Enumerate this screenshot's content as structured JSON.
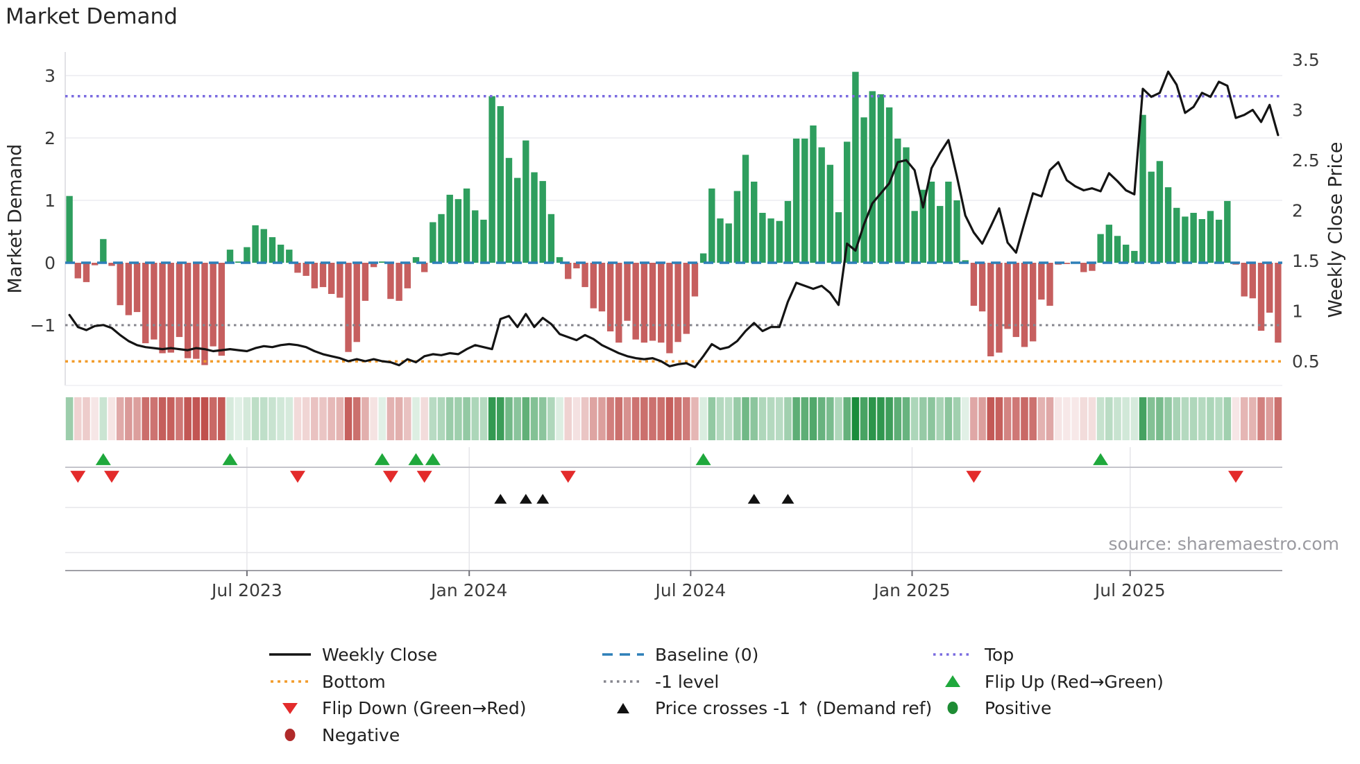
{
  "title": "Market Demand",
  "source": "source: sharemaestro.com",
  "axes": {
    "left_label": "Market Demand",
    "right_label": "Weekly Close Price",
    "left_ticks": [
      {
        "label": "3",
        "value": 3
      },
      {
        "label": "2",
        "value": 2
      },
      {
        "label": "1",
        "value": 1
      },
      {
        "label": "0",
        "value": 0
      },
      {
        "label": "−1",
        "value": -1
      }
    ],
    "right_ticks": [
      {
        "label": "3.5",
        "value": 3.5
      },
      {
        "label": "3",
        "value": 3
      },
      {
        "label": "2.5",
        "value": 2.5
      },
      {
        "label": "2",
        "value": 2
      },
      {
        "label": "1.5",
        "value": 1.5
      },
      {
        "label": "1",
        "value": 1
      },
      {
        "label": "0.5",
        "value": 0.5
      }
    ],
    "x_ticks": [
      {
        "label": "Jul 2023",
        "week": 21.0
      },
      {
        "label": "Jan 2024",
        "week": 47.3
      },
      {
        "label": "Jul 2024",
        "week": 73.5
      },
      {
        "label": "Jan 2025",
        "week": 99.7
      },
      {
        "label": "Jul 2025",
        "week": 125.5
      }
    ]
  },
  "legend": {
    "items": [
      {
        "label": "Weekly Close",
        "marker": "line-black"
      },
      {
        "label": "Baseline (0)",
        "marker": "dash-blue"
      },
      {
        "label": "Top",
        "marker": "dot-purple"
      },
      {
        "label": "Bottom",
        "marker": "dot-orange"
      },
      {
        "label": "-1 level",
        "marker": "dot-gray"
      },
      {
        "label": "Flip Up (Red→Green)",
        "marker": "tri-up-green"
      },
      {
        "label": "Flip Down (Green→Red)",
        "marker": "tri-down-red"
      },
      {
        "label": "Price crosses -1 ↑ (Demand ref)",
        "marker": "tri-up-black"
      },
      {
        "label": "Positive",
        "marker": "circle-green"
      },
      {
        "label": "Negative",
        "marker": "circle-darkred"
      }
    ]
  },
  "colors": {
    "bar_positive": "#2e9e5e",
    "bar_negative": "#c65f5f",
    "price_line": "#141414",
    "baseline": "#2d7fb8",
    "top": "#7a6be0",
    "minus_one": "#85858d",
    "bottom": "#f29c2c",
    "flip_up": "#1fa83c",
    "flip_down": "#e32b2b",
    "cross": "#111111",
    "positive_dot": "#1e8c34",
    "negative_dot": "#b02a2a",
    "heat_green_rgb": "26,140,60",
    "heat_red_rgb": "192,80,77",
    "grid": "#ececf1",
    "band_sep": "#c4c4cb",
    "band_grid": "#e6e6ea",
    "axis_line": "#9f9fa6",
    "tick_text": "#3a3a3a"
  },
  "chart_data": {
    "type": "bar+line",
    "title": "Market Demand",
    "x_axis": "weekly, Feb 2023 – Nov 2025",
    "x_tick_labels": [
      "Jul 2023",
      "Jan 2024",
      "Jul 2024",
      "Jan 2025",
      "Jul 2025"
    ],
    "ylabel_left": "Market Demand",
    "ylabel_right": "Weekly Close Price",
    "ylim_left": [
      -2.0,
      3.38
    ],
    "ylim_right": [
      0.27,
      3.55
    ],
    "grid": "horizontal at demand 1,2,3",
    "legend_position": "bottom",
    "reference_lines": {
      "baseline": 0,
      "top": 2.67,
      "minus_one_level": -1,
      "bottom": -1.58
    },
    "series": [
      {
        "name": "Market Demand",
        "type": "bar",
        "values": [
          1.07,
          -0.25,
          -0.31,
          -0.04,
          0.38,
          -0.05,
          -0.68,
          -0.84,
          -0.79,
          -1.29,
          -1.23,
          -1.45,
          -1.44,
          -1.19,
          -1.53,
          -1.54,
          -1.64,
          -1.34,
          -1.49,
          0.21,
          0.02,
          0.25,
          0.6,
          0.54,
          0.41,
          0.29,
          0.21,
          -0.16,
          -0.21,
          -0.41,
          -0.39,
          -0.5,
          -0.56,
          -1.43,
          -1.27,
          -0.61,
          -0.07,
          0.02,
          -0.58,
          -0.61,
          -0.41,
          0.09,
          -0.15,
          0.65,
          0.78,
          1.09,
          1.02,
          1.19,
          0.84,
          0.69,
          2.67,
          2.51,
          1.68,
          1.36,
          1.96,
          1.45,
          1.31,
          0.78,
          0.09,
          -0.26,
          -0.09,
          -0.39,
          -0.73,
          -0.78,
          -1.1,
          -1.28,
          -0.93,
          -1.23,
          -1.28,
          -1.25,
          -1.28,
          -1.45,
          -1.27,
          -1.14,
          -0.54,
          0.15,
          1.19,
          0.71,
          0.63,
          1.15,
          1.73,
          1.3,
          0.8,
          0.71,
          0.67,
          0.99,
          1.99,
          1.99,
          2.2,
          1.85,
          1.57,
          0.81,
          1.94,
          3.06,
          2.33,
          2.75,
          2.7,
          2.49,
          1.99,
          1.85,
          0.83,
          1.17,
          1.3,
          0.91,
          1.3,
          1.0,
          0.04,
          -0.69,
          -0.78,
          -1.5,
          -1.44,
          -1.06,
          -1.19,
          -1.35,
          -1.26,
          -0.59,
          -0.69,
          -0.03,
          -0.02,
          -0.01,
          -0.15,
          -0.13,
          0.46,
          0.61,
          0.43,
          0.29,
          0.19,
          2.37,
          1.46,
          1.63,
          1.21,
          0.88,
          0.74,
          0.8,
          0.7,
          0.83,
          0.69,
          0.99,
          -0.03,
          -0.54,
          -0.57,
          -1.09,
          -0.8,
          -1.28
        ]
      },
      {
        "name": "Weekly Close",
        "type": "line",
        "values": [
          0.96,
          0.84,
          0.81,
          0.85,
          0.86,
          0.83,
          0.76,
          0.7,
          0.66,
          0.64,
          0.63,
          0.62,
          0.63,
          0.62,
          0.61,
          0.63,
          0.62,
          0.6,
          0.61,
          0.62,
          0.61,
          0.6,
          0.63,
          0.65,
          0.64,
          0.66,
          0.67,
          0.66,
          0.64,
          0.6,
          0.57,
          0.55,
          0.53,
          0.5,
          0.52,
          0.5,
          0.52,
          0.5,
          0.49,
          0.46,
          0.52,
          0.49,
          0.55,
          0.57,
          0.56,
          0.58,
          0.57,
          0.62,
          0.66,
          0.64,
          0.62,
          0.92,
          0.95,
          0.84,
          0.97,
          0.84,
          0.93,
          0.87,
          0.77,
          0.74,
          0.71,
          0.76,
          0.72,
          0.66,
          0.62,
          0.58,
          0.55,
          0.53,
          0.52,
          0.53,
          0.5,
          0.45,
          0.47,
          0.48,
          0.44,
          0.55,
          0.67,
          0.62,
          0.64,
          0.7,
          0.8,
          0.88,
          0.8,
          0.84,
          0.84,
          1.09,
          1.28,
          1.25,
          1.22,
          1.25,
          1.18,
          1.06,
          1.67,
          1.6,
          1.86,
          2.07,
          2.17,
          2.27,
          2.48,
          2.5,
          2.4,
          2.03,
          2.42,
          2.57,
          2.7,
          2.34,
          1.95,
          1.78,
          1.67,
          1.84,
          2.02,
          1.68,
          1.58,
          1.88,
          2.17,
          2.14,
          2.4,
          2.48,
          2.3,
          2.24,
          2.2,
          2.22,
          2.19,
          2.37,
          2.29,
          2.2,
          2.16,
          3.21,
          3.13,
          3.17,
          3.38,
          3.25,
          2.97,
          3.03,
          3.17,
          3.13,
          3.28,
          3.24,
          2.92,
          2.95,
          3.0,
          2.88,
          3.05,
          2.75
        ]
      }
    ],
    "heatmap": "same weekly demand values shown as green/red intensity strip",
    "markers": {
      "flip_up_weeks": [
        4,
        19,
        37,
        41,
        43,
        75,
        122
      ],
      "flip_down_weeks": [
        1,
        5,
        27,
        38,
        42,
        59,
        107,
        138
      ],
      "price_cross_weeks": [
        51,
        54,
        56,
        81,
        85
      ]
    }
  }
}
